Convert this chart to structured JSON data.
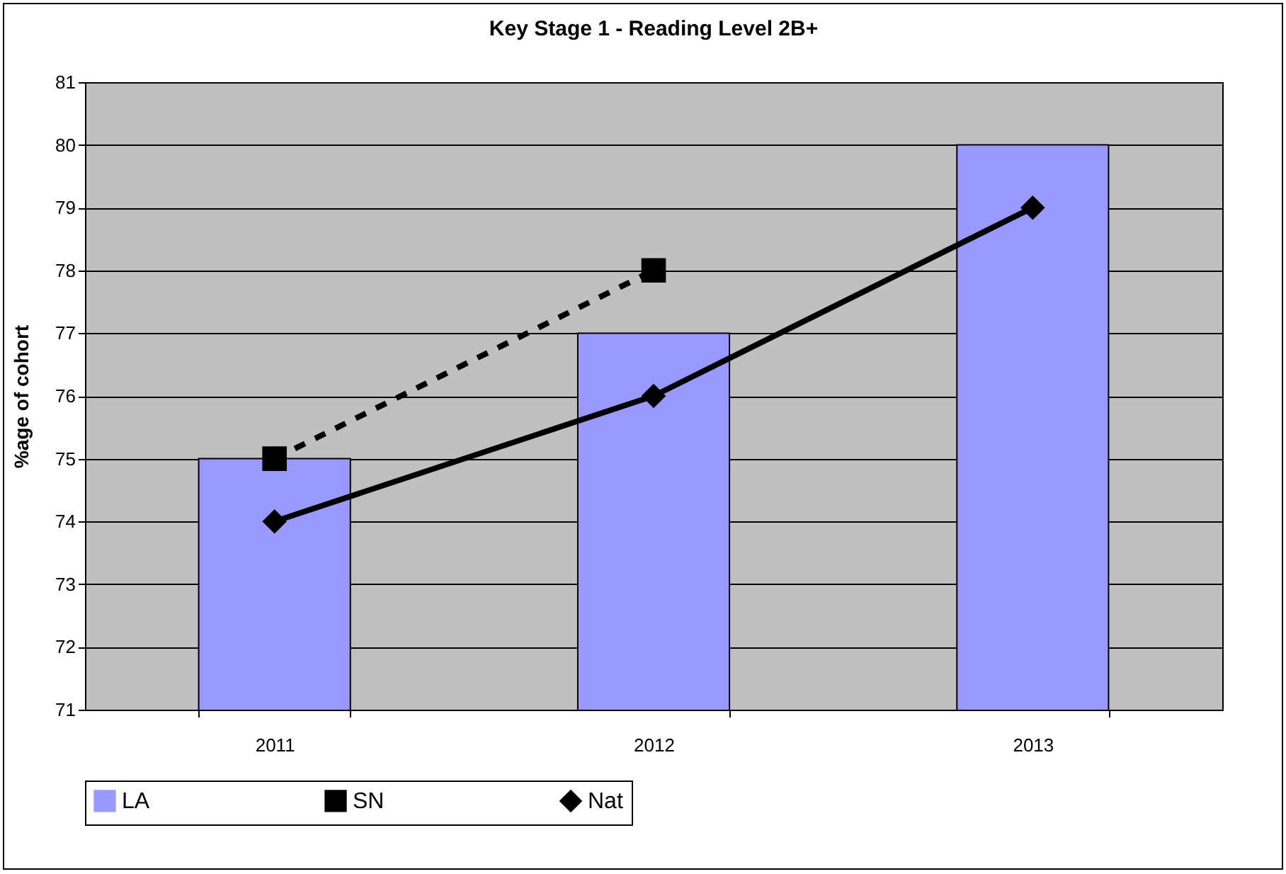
{
  "chart_data": {
    "type": "bar",
    "title": "Key Stage 1 - Reading Level 2B+",
    "ylabel": "%age of cohort",
    "categories": [
      "2011",
      "2012",
      "2013"
    ],
    "series": [
      {
        "name": "LA",
        "color": "#9999ff",
        "values": [
          75,
          77,
          80
        ]
      },
      {
        "name": "SN",
        "type": "line",
        "color": "#000000",
        "marker": "square",
        "line_style": "dashed",
        "values": [
          75,
          78,
          null
        ]
      },
      {
        "name": "Nat",
        "type": "line",
        "color": "#000000",
        "marker": "diamond",
        "line_style": "solid",
        "values": [
          74,
          76,
          79
        ]
      }
    ],
    "ylim": [
      71,
      81
    ],
    "yticks": [
      71,
      72,
      73,
      74,
      75,
      76,
      77,
      78,
      79,
      80,
      81
    ],
    "grid": "y",
    "legend": "bottom"
  }
}
